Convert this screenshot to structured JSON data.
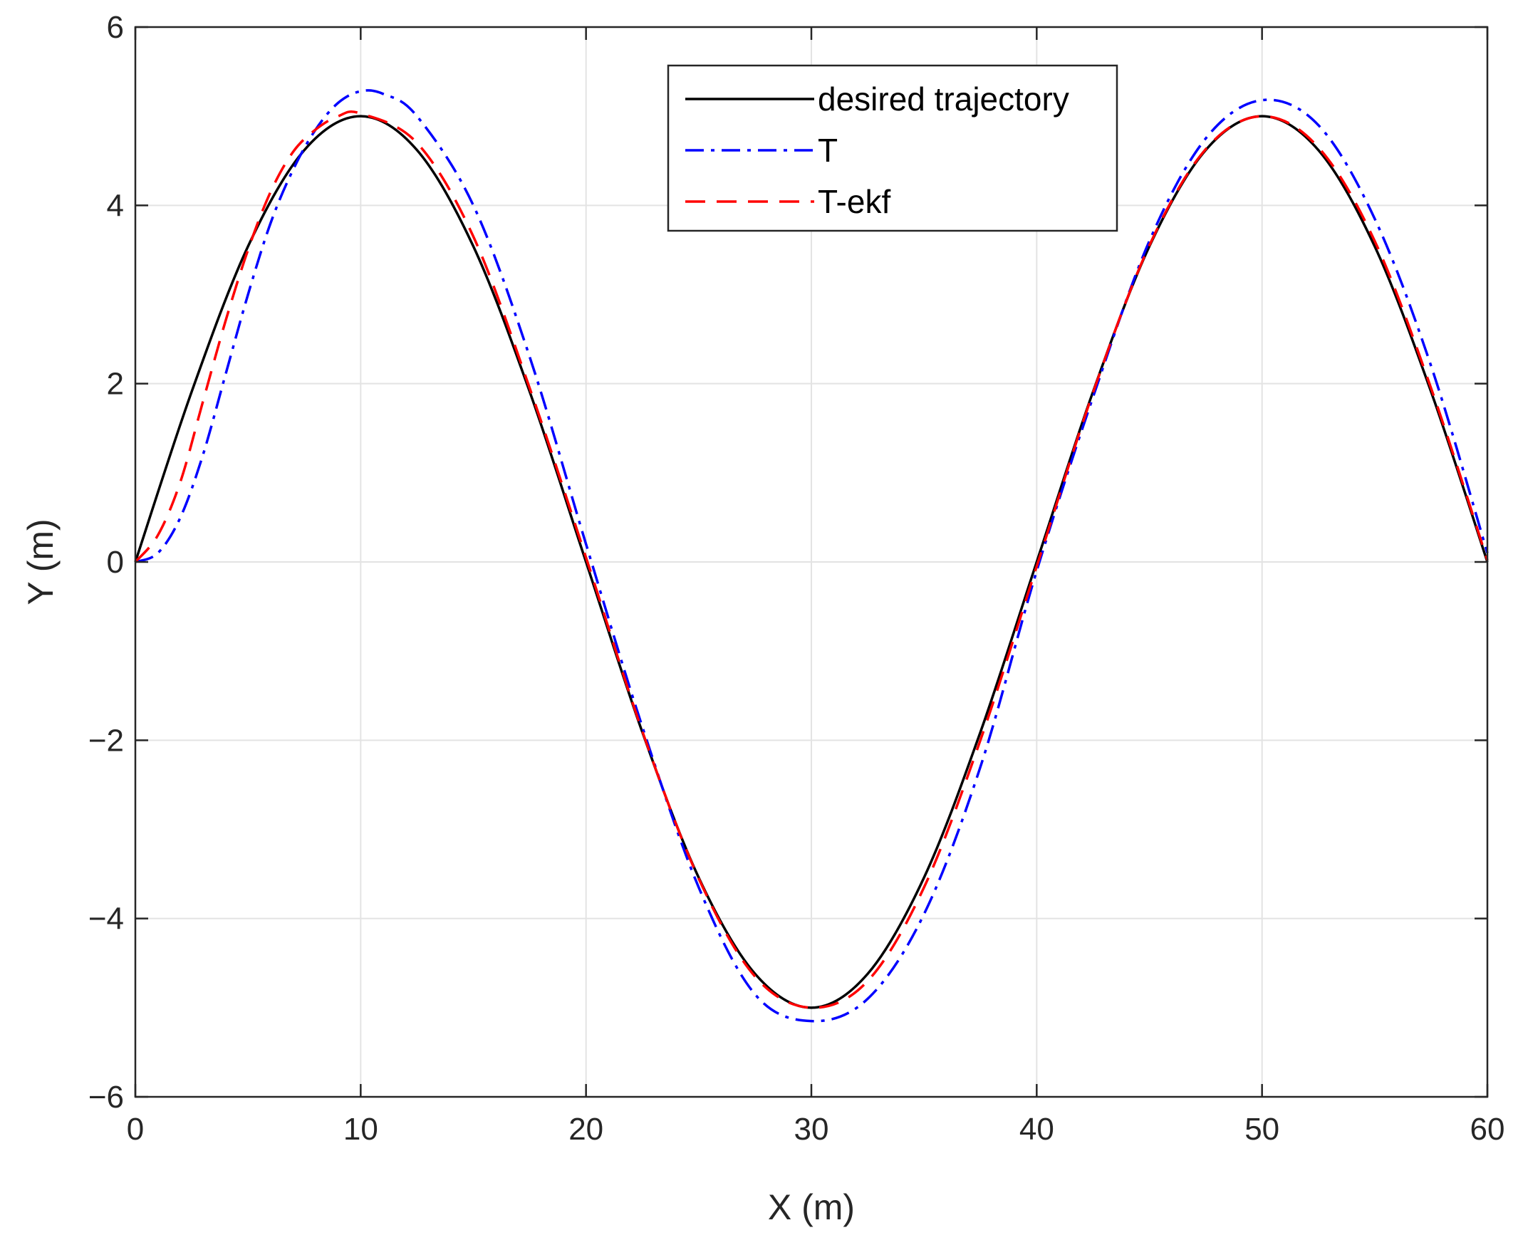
{
  "chart_data": {
    "type": "line",
    "xlabel": "X (m)",
    "ylabel": "Y (m)",
    "xlim": [
      0,
      60
    ],
    "ylim": [
      -6,
      6
    ],
    "xticks": [
      0,
      10,
      20,
      30,
      40,
      50,
      60
    ],
    "yticks": [
      -6,
      -4,
      -2,
      0,
      2,
      4,
      6
    ],
    "xtick_labels": [
      "0",
      "10",
      "20",
      "30",
      "40",
      "50",
      "60"
    ],
    "ytick_labels": [
      "−6",
      "−4",
      "−2",
      "0",
      "2",
      "4",
      "6"
    ],
    "grid": true,
    "legend_position": "top-center",
    "series": [
      {
        "name": "desired trajectory",
        "color": "#000000",
        "style": "solid",
        "x": [
          0,
          2.5,
          5,
          7.5,
          10,
          12.5,
          15,
          17.5,
          20,
          22.5,
          25,
          27.5,
          30,
          32.5,
          35,
          37.5,
          40,
          42.5,
          45,
          47.5,
          50,
          52.5,
          55,
          57.5,
          60
        ],
        "y": [
          0,
          1.91,
          3.54,
          4.62,
          5.0,
          4.62,
          3.54,
          1.91,
          0,
          -1.91,
          -3.54,
          -4.62,
          -5.0,
          -4.62,
          -3.54,
          -1.91,
          0,
          1.91,
          3.54,
          4.62,
          5.0,
          4.62,
          3.54,
          1.91,
          0
        ]
      },
      {
        "name": "T",
        "color": "#0000ff",
        "style": "dashdot",
        "x": [
          0,
          1,
          2,
          3,
          4,
          5,
          6,
          7,
          8,
          9,
          10,
          11,
          12.5,
          15,
          17.5,
          20,
          22.5,
          25,
          27.5,
          30,
          32.5,
          35,
          37.5,
          40,
          42.5,
          45,
          47.5,
          50,
          52.5,
          55,
          57.5,
          60
        ],
        "y": [
          0,
          0.1,
          0.5,
          1.2,
          2.1,
          3.0,
          3.8,
          4.4,
          4.85,
          5.15,
          5.28,
          5.25,
          5.0,
          4.0,
          2.3,
          0.2,
          -1.85,
          -3.65,
          -4.85,
          -5.15,
          -4.9,
          -3.95,
          -2.3,
          -0.1,
          1.85,
          3.6,
          4.75,
          5.18,
          4.9,
          3.85,
          2.2,
          0.1
        ]
      },
      {
        "name": "T-ekf",
        "color": "#ff0000",
        "style": "dashed",
        "x": [
          0,
          1,
          2,
          3,
          4,
          5,
          6,
          7,
          8,
          9,
          10,
          12.5,
          15,
          17.5,
          20,
          22.5,
          25,
          27.5,
          30,
          32.5,
          35,
          37.5,
          40,
          42.5,
          45,
          47.5,
          50,
          52.5,
          55,
          57.5,
          60
        ],
        "y": [
          0,
          0.3,
          0.9,
          1.8,
          2.7,
          3.5,
          4.15,
          4.6,
          4.85,
          5.0,
          5.03,
          4.7,
          3.65,
          1.95,
          0.05,
          -1.9,
          -3.55,
          -4.65,
          -5.0,
          -4.7,
          -3.65,
          -2.0,
          -0.05,
          1.9,
          3.55,
          4.63,
          5.0,
          4.65,
          3.6,
          1.95,
          0.02
        ]
      }
    ]
  }
}
